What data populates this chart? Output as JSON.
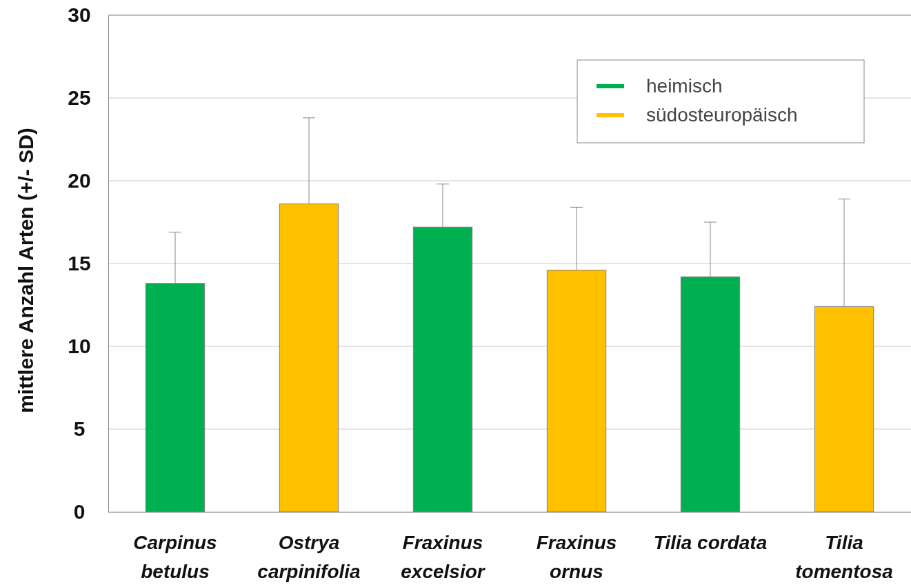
{
  "chart_data": {
    "type": "bar",
    "ylabel": "mittlere Anzahl Arten (+/- SD)",
    "categories": [
      "Carpinus betulus",
      "Ostrya carpinifolia",
      "Fraxinus excelsior",
      "Fraxinus ornus",
      "Tilia cordata",
      "Tilia tomentosa"
    ],
    "series": [
      {
        "name": "heimisch",
        "color": "#00b050",
        "values": [
          13.8,
          null,
          17.2,
          null,
          14.2,
          null
        ],
        "errors": [
          [
            13.8,
            16.9
          ],
          null,
          [
            17.2,
            19.8
          ],
          null,
          [
            14.2,
            17.5
          ],
          null
        ]
      },
      {
        "name": "südosteuropäisch",
        "color": "#ffc000",
        "values": [
          null,
          18.6,
          null,
          14.6,
          null,
          12.4
        ],
        "errors": [
          null,
          [
            18.6,
            23.8
          ],
          null,
          [
            14.6,
            18.4
          ],
          null,
          [
            12.4,
            18.9
          ]
        ]
      }
    ],
    "ylim": [
      0,
      30
    ],
    "yticks": [
      0,
      5,
      10,
      15,
      20,
      25,
      30
    ],
    "grid": "y",
    "legend": "top right"
  }
}
